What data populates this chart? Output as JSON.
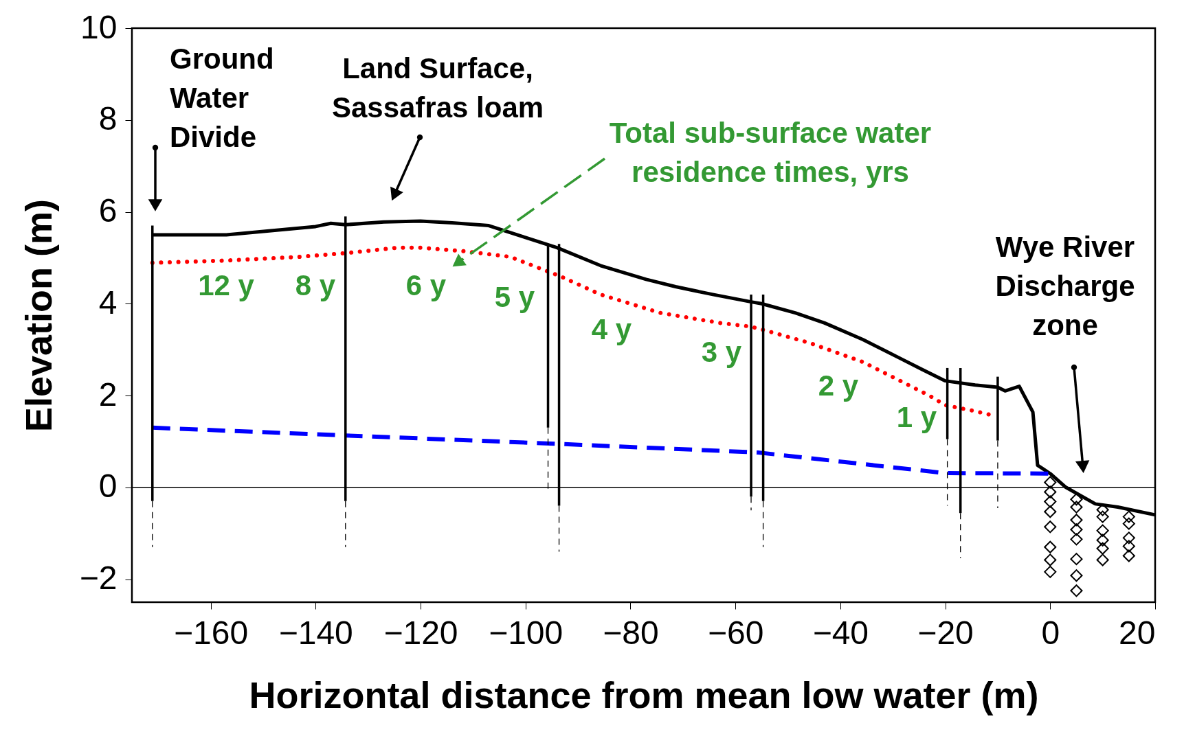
{
  "chart_data": {
    "type": "line",
    "xlabel": "Horizontal distance from mean low water (m)",
    "ylabel": "Elevation (m)",
    "xlim": [
      -175,
      20
    ],
    "xticks": [
      -160,
      -140,
      -120,
      -100,
      -80,
      -60,
      -40,
      -20,
      0,
      20
    ],
    "ylim": [
      -2.5,
      10
    ],
    "yticks": [
      -2,
      0,
      2,
      4,
      6,
      8,
      10
    ],
    "grid": false,
    "ref_lines": [
      {
        "axis": "y",
        "value": 0,
        "color": "#000000"
      }
    ],
    "series": [
      {
        "color": "#000000",
        "line_style": "solid",
        "x": [
          -171.1,
          -157,
          -140,
          -137.1,
          -134.3,
          -127,
          -120,
          -114,
          -107,
          -100,
          -94,
          -85.7,
          -77,
          -71.4,
          -64.3,
          -57,
          -55,
          -48.6,
          -43,
          -35.7,
          -28.6,
          -24.3,
          -20,
          -14.3,
          -10,
          -8.6,
          -5.9,
          -3.3,
          -2.4,
          0,
          3,
          8.6,
          12.9,
          20
        ],
        "values": [
          5.5,
          5.5,
          5.68,
          5.75,
          5.72,
          5.78,
          5.8,
          5.76,
          5.7,
          5.44,
          5.22,
          4.83,
          4.53,
          4.37,
          4.2,
          4.04,
          4.0,
          3.8,
          3.58,
          3.22,
          2.81,
          2.56,
          2.32,
          2.23,
          2.18,
          2.1,
          2.2,
          1.64,
          0.48,
          0.3,
          0,
          -0.36,
          -0.43,
          -0.6
        ]
      },
      {
        "color": "#ff0000",
        "line_style": "dotted",
        "x": [
          -171.1,
          -157,
          -143,
          -134.3,
          -124.3,
          -120,
          -111.4,
          -102.9,
          -95.7,
          -93.6,
          -85.7,
          -74.3,
          -62.9,
          -57,
          -54.7,
          -45.7,
          -35.7,
          -28.6,
          -22.9,
          -20,
          -14.3,
          -11.4
        ],
        "values": [
          4.89,
          4.94,
          5.02,
          5.1,
          5.22,
          5.22,
          5.14,
          5.02,
          4.7,
          4.61,
          4.2,
          3.8,
          3.58,
          3.5,
          3.43,
          3.14,
          2.73,
          2.32,
          1.99,
          1.79,
          1.66,
          1.58
        ]
      },
      {
        "color": "#0000ff",
        "line_style": "dashed",
        "x": [
          -171.1,
          -134.3,
          -94.3,
          -55.7,
          -20,
          0
        ],
        "values": [
          1.3,
          1.13,
          0.95,
          0.76,
          0.31,
          0.3
        ]
      },
      {
        "color": "#000000",
        "line_style": "solid",
        "x": [
          -171.1,
          -171.1
        ],
        "values": [
          5.7,
          -0.3
        ]
      },
      {
        "color": "#000000",
        "line_style": "solid",
        "x": [
          -134.3,
          -134.3
        ],
        "values": [
          5.9,
          -0.3
        ]
      },
      {
        "color": "#000000",
        "line_style": "solid",
        "x": [
          -95.7,
          -95.7
        ],
        "values": [
          5.3,
          1.3
        ]
      },
      {
        "color": "#000000",
        "line_style": "solid",
        "x": [
          -93.6,
          -93.6
        ],
        "values": [
          5.3,
          -0.4
        ]
      },
      {
        "color": "#000000",
        "line_style": "solid",
        "x": [
          -57,
          -57
        ],
        "values": [
          4.2,
          -0.2
        ]
      },
      {
        "color": "#000000",
        "line_style": "solid",
        "x": [
          -54.7,
          -54.7
        ],
        "values": [
          4.2,
          -0.3
        ]
      },
      {
        "color": "#000000",
        "line_style": "solid",
        "x": [
          -19.6,
          -19.6
        ],
        "values": [
          2.6,
          1.05
        ]
      },
      {
        "color": "#000000",
        "line_style": "solid",
        "x": [
          -17.1,
          -17.1
        ],
        "values": [
          2.6,
          -0.56
        ]
      },
      {
        "color": "#000000",
        "line_style": "solid",
        "x": [
          -10,
          -10
        ],
        "values": [
          2.41,
          1.02
        ]
      },
      {
        "color": "#000000",
        "line_style": "dashed",
        "x": [
          -171.1,
          -171.1
        ],
        "values": [
          -0.3,
          -1.3
        ]
      },
      {
        "color": "#000000",
        "line_style": "dashed",
        "x": [
          -134.3,
          -134.3
        ],
        "values": [
          -0.3,
          -1.3
        ]
      },
      {
        "color": "#000000",
        "line_style": "dashed",
        "x": [
          -95.7,
          -95.7
        ],
        "values": [
          1.3,
          -0.05
        ]
      },
      {
        "color": "#000000",
        "line_style": "dashed",
        "x": [
          -93.6,
          -93.6
        ],
        "values": [
          -0.4,
          -1.4
        ]
      },
      {
        "color": "#000000",
        "line_style": "dashed",
        "x": [
          -57,
          -57
        ],
        "values": [
          -0.2,
          -0.5
        ]
      },
      {
        "color": "#000000",
        "line_style": "dashed",
        "x": [
          -54.7,
          -54.7
        ],
        "values": [
          -0.3,
          -1.3
        ]
      },
      {
        "color": "#000000",
        "line_style": "dashed",
        "x": [
          -19.6,
          -19.6
        ],
        "values": [
          1.05,
          -0.4
        ]
      },
      {
        "color": "#000000",
        "line_style": "dashed",
        "x": [
          -17.1,
          -17.1
        ],
        "values": [
          -0.56,
          -1.54
        ]
      },
      {
        "color": "#000000",
        "line_style": "dashed",
        "x": [
          -10,
          -10
        ],
        "values": [
          1.02,
          -0.45
        ]
      },
      {
        "type": "scatter",
        "color": "#000000",
        "marker": "diamond",
        "x": [
          0,
          0,
          0,
          0,
          0,
          0,
          0,
          0,
          5,
          5,
          5,
          5,
          5,
          5,
          5,
          5,
          10,
          10,
          10,
          10,
          10,
          10,
          15,
          15,
          15,
          15,
          15
        ],
        "values": [
          0.11,
          -0.1,
          -0.31,
          -0.53,
          -0.86,
          -1.3,
          -1.58,
          -1.84,
          -0.26,
          -0.43,
          -0.71,
          -0.92,
          -1.13,
          -1.56,
          -1.92,
          -2.25,
          -0.49,
          -0.64,
          -0.94,
          -1.15,
          -1.33,
          -1.58,
          -0.64,
          -0.79,
          -1.1,
          -1.28,
          -1.49
        ]
      }
    ],
    "annotations": [
      "Ground Water Divide",
      "Land Surface, Sassafras loam",
      "Total sub-surface water residence times, yrs",
      "Wye River Discharge zone",
      "12 y",
      "8 y",
      "6 y",
      "5 y",
      "4 y",
      "3 y",
      "2 y",
      "1 y"
    ]
  }
}
